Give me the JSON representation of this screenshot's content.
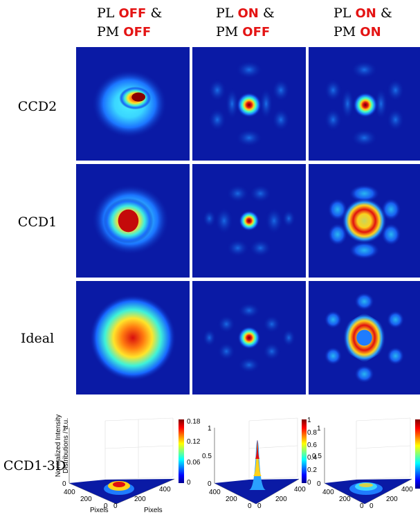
{
  "columns": [
    {
      "l1_pre": "PL ",
      "l1_hl": "OFF",
      "l1_post": " &",
      "l2_pre": "PM ",
      "l2_hl": "OFF"
    },
    {
      "l1_pre": "PL ",
      "l1_hl": "ON",
      "l1_post": " &",
      "l2_pre": "PM ",
      "l2_hl": "OFF"
    },
    {
      "l1_pre": "PL ",
      "l1_hl": "ON",
      "l1_post": " &",
      "l2_pre": "PM ",
      "l2_hl": "ON"
    }
  ],
  "rows": [
    "CCD2",
    "CCD1",
    "Ideal"
  ],
  "bottom_row_label": "CCD1-3D",
  "plot3d": {
    "z_axis_label_l1": "Normalized Intensity",
    "z_axis_label_l2": "Distributions / a.u.",
    "z_ticks": [
      "1",
      "0.5",
      "0"
    ],
    "x_label": "Pixels",
    "y_label": "Pixels",
    "y_ticks": [
      "400",
      "200",
      "0"
    ],
    "x_ticks": [
      "0",
      "200",
      "400"
    ],
    "colorbars": [
      [
        "0.18",
        "0.12",
        "0.06",
        "0"
      ],
      [
        "1",
        "0.8",
        "0.6",
        "0.4",
        "0.2",
        "0"
      ],
      []
    ]
  },
  "colors": {
    "highlight": "#e41414",
    "background_blue": "#0a1aa5"
  }
}
